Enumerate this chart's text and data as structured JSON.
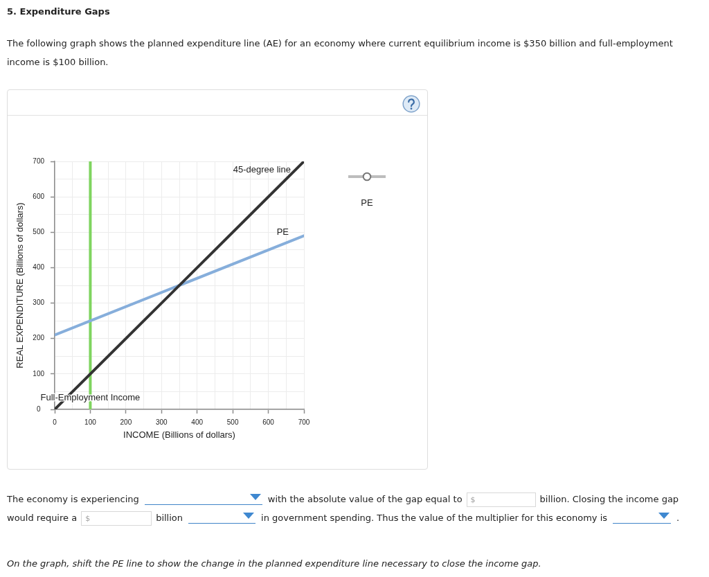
{
  "chart_data": {
    "type": "line",
    "title": "5. Expenditure Gaps",
    "subtitle": "The following graph shows the planned expenditure line (AE) for an economy where current equilibrium income is $350 billion and full-employment income is $100 billion.",
    "xlabel": "INCOME (Billions of dollars)",
    "ylabel": "REAL EXPENDITURE (Billions of dollars)",
    "xlim": [
      0,
      700
    ],
    "ylim": [
      0,
      700
    ],
    "xticks": [
      0,
      {
        "value": 50,
        "label": null
      },
      100,
      {
        "value": 150,
        "label": null
      },
      200,
      {
        "value": 250,
        "label": null
      },
      300,
      {
        "value": 350,
        "label": null
      },
      400,
      {
        "value": 450,
        "label": null
      },
      500,
      {
        "value": 550,
        "label": null
      },
      600,
      {
        "value": 650,
        "label": null
      },
      700
    ],
    "yticks": [
      0,
      {
        "value": 50,
        "label": null
      },
      100,
      {
        "value": 150,
        "label": null
      },
      200,
      {
        "value": 250,
        "label": null
      },
      300,
      {
        "value": 350,
        "label": null
      },
      400,
      {
        "value": 450,
        "label": null
      },
      500,
      {
        "value": 550,
        "label": null
      },
      600,
      {
        "value": 650,
        "label": null
      },
      700
    ],
    "grid": true,
    "marker": "none",
    "x": [
      0,
      700
    ],
    "series": [
      {
        "name": "45-degree line",
        "color": "#333333",
        "values": [
          0,
          700
        ]
      },
      {
        "name": "PE",
        "color": "#86aedb",
        "values": [
          210,
          490
        ]
      }
    ],
    "ref_lines": [
      {
        "axis": "x",
        "value": 100,
        "label": "Full-Employment Income",
        "color": "#7fd45f"
      }
    ],
    "annotations": [
      "PE",
      "The economy is experiencing",
      "with the absolute value of the gap equal to",
      "$",
      "billion. Closing the income gap",
      "would require a",
      "$",
      "billion",
      "in government spending. Thus the value of the multiplier for this economy is",
      ".",
      "On the graph, shift the PE line to show the change in the planned expenditure line necessary to close the income gap."
    ]
  }
}
